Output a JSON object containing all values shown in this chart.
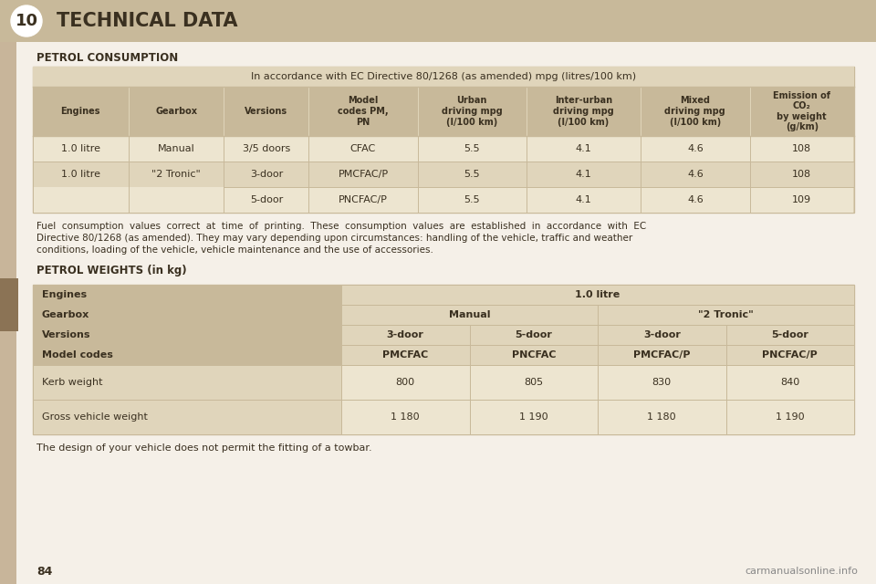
{
  "title": "TECHNICAL DATA",
  "page_num": "10",
  "bg_color": "#f5f0e8",
  "tan_header": "#c8b99a",
  "tan_light": "#e0d5bb",
  "tan_data": "#ede5d0",
  "tan_left_strip": "#c8b59a",
  "tan_tab": "#8b7355",
  "text_dark": "#3a3020",
  "white": "#ffffff",
  "section1_title": "PETROL CONSUMPTION",
  "section2_title": "PETROL WEIGHTS (in kg)",
  "table1_header": "In accordance with EC Directive 80/1268 (as amended) mpg (litres/100 km)",
  "table1_col_headers": [
    "Engines",
    "Gearbox",
    "Versions",
    "Model\ncodes PM,\nPN",
    "Urban\ndriving mpg\n(l/100 km)",
    "Inter-urban\ndriving mpg\n(l/100 km)",
    "Mixed\ndriving mpg\n(l/100 km)",
    "Emission of\nCO₂\nby weight\n(g/km)"
  ],
  "table1_rows": [
    [
      "1.0 litre",
      "Manual",
      "3/5 doors",
      "CFAC",
      "5.5",
      "4.1",
      "4.6",
      "108"
    ],
    [
      "1.0 litre",
      "\"2 Tronic\"",
      "3-door",
      "PMCFAC/P",
      "5.5",
      "4.1",
      "4.6",
      "108"
    ],
    [
      "",
      "",
      "5-door",
      "PNCFAC/P",
      "5.5",
      "4.1",
      "4.6",
      "109"
    ]
  ],
  "footnote_lines": [
    "Fuel  consumption  values  correct  at  time  of  printing.  These  consumption  values  are  established  in  accordance  with  EC",
    "Directive 80/1268 (as amended). They may vary depending upon circumstances: handling of the vehicle, traffic and weather",
    "conditions, loading of the vehicle, vehicle maintenance and the use of accessories."
  ],
  "table2_data": [
    [
      "Engines",
      "1.0 litre",
      "",
      "",
      ""
    ],
    [
      "Gearbox",
      "Manual",
      "",
      "\"2 Tronic\"",
      ""
    ],
    [
      "Versions",
      "3-door",
      "5-door",
      "3-door",
      "5-door"
    ],
    [
      "Model codes",
      "PMCFAC",
      "PNCFAC",
      "PMCFAC/P",
      "PNCFAC/P"
    ],
    [
      "Kerb weight",
      "800",
      "805",
      "830",
      "840"
    ],
    [
      "Gross vehicle weight",
      "1 180",
      "1 190",
      "1 180",
      "1 190"
    ]
  ],
  "bottom_note": "The design of your vehicle does not permit the fitting of a towbar.",
  "page_label": "84",
  "watermark": "carmanualsonline.info"
}
